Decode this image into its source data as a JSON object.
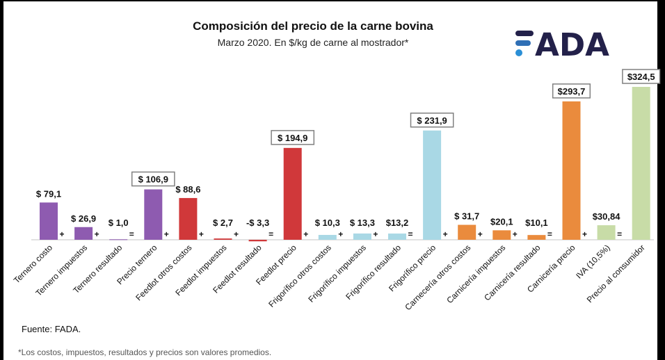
{
  "chart_data": {
    "type": "bar",
    "title": "Composición del precio de la carne bovina",
    "subtitle": "Marzo 2020. En $/kg de carne al mostrador*",
    "categories": [
      "Ternero costo",
      "Ternero impuestos",
      "Ternero resultado",
      "Precio ternero",
      "Feedlot otros costos",
      "Feedlot impuestos",
      "Feedlot resultado",
      "Feedlot precio",
      "Frigorífico otros costos",
      "Frigorífico impuestos",
      "Frigorífico resultado",
      "Frigorífico precio",
      "Carnecería otros costos",
      "Carnicería impuestos",
      "Carnicería resultado",
      "Carnicería precio",
      "IVA (10,5%)",
      "Precio al consumidor"
    ],
    "values": [
      79.1,
      26.9,
      1.0,
      106.9,
      88.6,
      2.7,
      -3.3,
      194.9,
      10.3,
      13.3,
      13.2,
      231.9,
      31.7,
      20.1,
      10.1,
      293.7,
      30.84,
      324.5
    ],
    "data_labels": [
      "$ 79,1",
      "$ 26,9",
      "$ 1,0",
      "$ 106,9",
      "$ 88,6",
      "$ 2,7",
      "-$ 3,3",
      "$ 194,9",
      "$ 10,3",
      "$ 13,3",
      "$13,2",
      "$ 231,9",
      "$ 31,7",
      "$20,1",
      "$10,1",
      "$293,7",
      "$30,84",
      "$324,5"
    ],
    "boxed_labels": [
      3,
      7,
      11,
      15,
      17
    ],
    "operators": [
      "+",
      "+",
      "=",
      "+",
      "+",
      "+",
      "=",
      "+",
      "+",
      "+",
      "=",
      "+",
      "+",
      "+",
      "=",
      "+",
      "=",
      ""
    ],
    "colors": [
      "#8e5bb0",
      "#8e5bb0",
      "#8e5bb0",
      "#8e5bb0",
      "#d0383a",
      "#d0383a",
      "#d0383a",
      "#d0383a",
      "#a9d8e5",
      "#a9d8e5",
      "#a9d8e5",
      "#a9d8e5",
      "#ea8b3d",
      "#ea8b3d",
      "#ea8b3d",
      "#ea8b3d",
      "#c8dca7",
      "#c8dca7"
    ],
    "xlabel": "",
    "ylabel": "",
    "ylim": [
      -10,
      330
    ],
    "grid": false,
    "legend": "none"
  },
  "logo_text": "FADA",
  "source": "Fuente: FADA.",
  "footnote": "*Los costos, impuestos, resultados y precios son valores promedios."
}
